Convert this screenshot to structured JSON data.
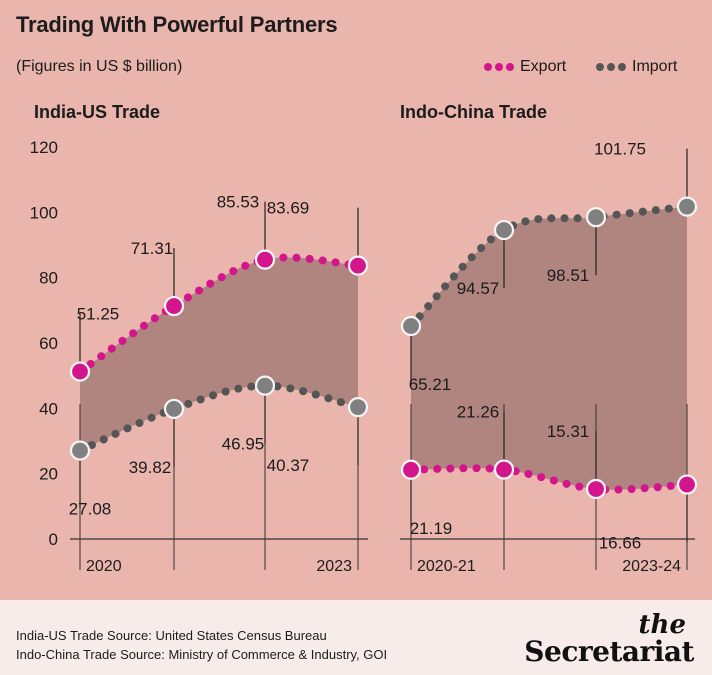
{
  "header": {
    "title": "Trading With Powerful Partners",
    "subtitle": "(Figures in US $ billion)"
  },
  "legend": {
    "export_label": "Export",
    "import_label": "Import"
  },
  "colors": {
    "background": "#e9b5ac",
    "export": "#d4168c",
    "import": "#555555",
    "fill": "#b0847f",
    "marker_face_import": "#808080"
  },
  "chart_data": [
    {
      "type": "line",
      "title": "India-US Trade",
      "categories": [
        "2020",
        "",
        "",
        "2023"
      ],
      "ylim": [
        0,
        120
      ],
      "yticks": [
        0,
        20,
        40,
        60,
        80,
        100,
        120
      ],
      "series": [
        {
          "name": "Export",
          "values": [
            51.25,
            71.31,
            85.53,
            83.69
          ]
        },
        {
          "name": "Import",
          "values": [
            27.08,
            39.82,
            46.95,
            40.37
          ]
        }
      ],
      "shaded_between_series": true
    },
    {
      "type": "line",
      "title": "Indo-China Trade",
      "categories": [
        "2020-21",
        "",
        "",
        "2023-24"
      ],
      "ylim": [
        0,
        120
      ],
      "series": [
        {
          "name": "Export",
          "values": [
            21.19,
            21.26,
            15.31,
            16.66
          ]
        },
        {
          "name": "Import",
          "values": [
            65.21,
            94.57,
            98.51,
            101.75
          ]
        }
      ],
      "shaded_between_series": true
    }
  ],
  "footer": {
    "source_us": "India-US Trade Source: United States Census Bureau",
    "source_china": "Indo-China Trade Source: Ministry of Commerce & Industry, GOI",
    "brand_the": "the",
    "brand_name": "Secretariat"
  }
}
